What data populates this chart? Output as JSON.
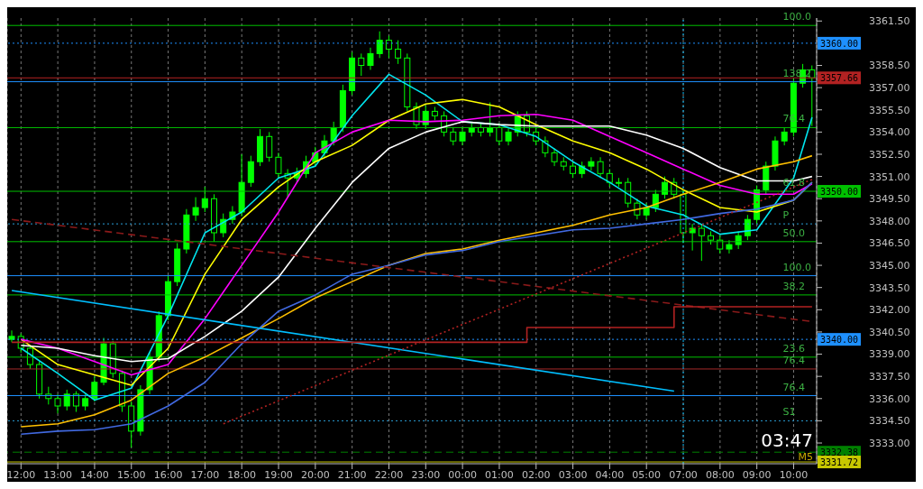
{
  "chart_data": {
    "type": "candlestick",
    "color": "#00ff00",
    "grid": "x",
    "categories": [
      null,
      "12:00",
      null,
      null,
      null,
      "13:00",
      null,
      null,
      null,
      "14:00",
      null,
      null,
      null,
      "15:00",
      null,
      null,
      null,
      "16:00",
      null,
      null,
      null,
      "17:00",
      null,
      null,
      null,
      "18:00",
      null,
      null,
      null,
      "19:00",
      null,
      null,
      null,
      "20:00",
      null,
      null,
      null,
      "21:00",
      null,
      null,
      null,
      "22:00",
      null,
      null,
      null,
      "23:00",
      null,
      null,
      null,
      "00:00",
      null,
      null,
      null,
      "01:00",
      null,
      null,
      null,
      "02:00",
      null,
      null,
      null,
      "03:00",
      null,
      null,
      null,
      "04:00",
      null,
      null,
      null,
      "05:00",
      null,
      null,
      null,
      "07:00",
      null,
      null,
      null,
      "08:00",
      null,
      null,
      null,
      "09:00",
      null,
      null,
      null,
      "10:00",
      null,
      null
    ],
    "ohlc": [
      [
        3340.0,
        3340.6,
        3339.8,
        3340.2
      ],
      [
        3340.2,
        3340.4,
        3339.1,
        3339.4
      ],
      [
        3339.4,
        3339.6,
        3338.0,
        3338.3
      ],
      [
        3338.3,
        3338.5,
        3336.0,
        3336.3
      ],
      [
        3336.3,
        3336.8,
        3335.6,
        3336.0
      ],
      [
        3336.0,
        3336.3,
        3335.0,
        3335.5
      ],
      [
        3335.5,
        3336.6,
        3335.2,
        3336.3
      ],
      [
        3336.3,
        3336.5,
        3335.1,
        3335.5
      ],
      [
        3335.5,
        3336.3,
        3335.2,
        3336.0
      ],
      [
        3336.0,
        3337.5,
        3335.8,
        3337.1
      ],
      [
        3337.1,
        3340.1,
        3336.9,
        3339.7
      ],
      [
        3339.7,
        3339.9,
        3337.4,
        3337.7
      ],
      [
        3337.7,
        3337.9,
        3335.1,
        3335.5
      ],
      [
        3335.5,
        3335.8,
        3332.7,
        3333.8
      ],
      [
        3333.8,
        3336.9,
        3333.5,
        3336.6
      ],
      [
        3336.6,
        3339.1,
        3336.3,
        3338.8
      ],
      [
        3338.8,
        3341.9,
        3338.5,
        3341.6
      ],
      [
        3341.6,
        3344.3,
        3341.3,
        3343.9
      ],
      [
        3343.9,
        3346.5,
        3343.6,
        3346.1
      ],
      [
        3346.1,
        3348.8,
        3345.8,
        3348.4
      ],
      [
        3348.4,
        3349.6,
        3348.0,
        3348.9
      ],
      [
        3348.9,
        3350.3,
        3348.6,
        3349.5
      ],
      [
        3349.5,
        3349.8,
        3346.6,
        3347.2
      ],
      [
        3347.2,
        3348.5,
        3346.9,
        3348.1
      ],
      [
        3348.1,
        3349.0,
        3347.8,
        3348.6
      ],
      [
        3348.6,
        3352.5,
        3348.3,
        3350.6
      ],
      [
        3350.6,
        3352.4,
        3350.3,
        3352.0
      ],
      [
        3352.0,
        3354.2,
        3351.7,
        3353.7
      ],
      [
        3353.7,
        3354.0,
        3352.0,
        3352.3
      ],
      [
        3352.3,
        3352.6,
        3350.9,
        3351.2
      ],
      [
        3351.2,
        3351.5,
        3349.6,
        3350.9
      ],
      [
        3350.9,
        3351.6,
        3350.6,
        3351.2
      ],
      [
        3351.2,
        3352.4,
        3350.9,
        3352.0
      ],
      [
        3352.0,
        3353.0,
        3351.7,
        3352.6
      ],
      [
        3352.6,
        3353.8,
        3352.3,
        3353.4
      ],
      [
        3353.4,
        3354.7,
        3353.1,
        3354.3
      ],
      [
        3354.3,
        3357.2,
        3354.0,
        3356.8
      ],
      [
        3356.8,
        3359.4,
        3356.5,
        3359.0
      ],
      [
        3359.0,
        3359.3,
        3357.8,
        3358.5
      ],
      [
        3358.5,
        3359.7,
        3358.2,
        3359.3
      ],
      [
        3359.3,
        3360.8,
        3359.0,
        3360.2
      ],
      [
        3360.2,
        3360.5,
        3359.0,
        3359.6
      ],
      [
        3359.6,
        3360.2,
        3358.6,
        3359.0
      ],
      [
        3359.0,
        3359.3,
        3355.4,
        3355.7
      ],
      [
        3355.7,
        3356.0,
        3354.2,
        3354.5
      ],
      [
        3354.5,
        3355.8,
        3354.2,
        3355.4
      ],
      [
        3355.4,
        3355.7,
        3354.8,
        3355.1
      ],
      [
        3355.1,
        3355.4,
        3353.7,
        3354.0
      ],
      [
        3354.0,
        3354.3,
        3353.1,
        3353.4
      ],
      [
        3353.4,
        3354.3,
        3353.1,
        3354.0
      ],
      [
        3354.0,
        3354.6,
        3353.7,
        3354.3
      ],
      [
        3354.3,
        3354.6,
        3353.7,
        3354.0
      ],
      [
        3354.0,
        3356.0,
        3353.7,
        3354.3
      ],
      [
        3354.3,
        3354.6,
        3353.1,
        3353.4
      ],
      [
        3353.4,
        3354.3,
        3353.1,
        3354.0
      ],
      [
        3354.0,
        3355.4,
        3353.7,
        3355.1
      ],
      [
        3355.1,
        3355.4,
        3353.7,
        3354.0
      ],
      [
        3354.0,
        3354.3,
        3353.1,
        3353.4
      ],
      [
        3353.4,
        3353.7,
        3352.3,
        3352.6
      ],
      [
        3352.6,
        3352.9,
        3351.7,
        3352.0
      ],
      [
        3352.0,
        3352.3,
        3351.4,
        3351.7
      ],
      [
        3351.7,
        3352.0,
        3350.9,
        3351.2
      ],
      [
        3351.2,
        3352.0,
        3350.9,
        3351.7
      ],
      [
        3351.7,
        3352.3,
        3351.4,
        3352.0
      ],
      [
        3352.0,
        3352.3,
        3350.9,
        3351.2
      ],
      [
        3351.2,
        3351.5,
        3350.3,
        3350.6
      ],
      [
        3350.6,
        3350.9,
        3350.3,
        3350.6
      ],
      [
        3350.6,
        3350.9,
        3348.9,
        3349.2
      ],
      [
        3349.2,
        3349.5,
        3348.1,
        3348.4
      ],
      [
        3348.4,
        3349.2,
        3348.1,
        3348.9
      ],
      [
        3348.9,
        3350.1,
        3348.6,
        3349.8
      ],
      [
        3349.8,
        3351.0,
        3349.5,
        3350.6
      ],
      [
        3350.6,
        3350.9,
        3349.5,
        3349.8
      ],
      [
        3349.8,
        3350.1,
        3346.5,
        3347.2
      ],
      [
        3347.2,
        3347.8,
        3346.0,
        3347.5
      ],
      [
        3347.5,
        3347.8,
        3345.3,
        3347.0
      ],
      [
        3347.0,
        3347.3,
        3346.4,
        3346.7
      ],
      [
        3346.7,
        3347.0,
        3345.8,
        3346.1
      ],
      [
        3346.1,
        3346.7,
        3345.8,
        3346.4
      ],
      [
        3346.4,
        3347.3,
        3346.1,
        3347.0
      ],
      [
        3347.0,
        3348.4,
        3346.7,
        3348.1
      ],
      [
        3348.1,
        3350.4,
        3347.8,
        3350.1
      ],
      [
        3350.1,
        3352.0,
        3349.8,
        3351.7
      ],
      [
        3351.7,
        3353.7,
        3351.4,
        3353.4
      ],
      [
        3353.4,
        3354.3,
        3353.1,
        3354.0
      ],
      [
        3354.0,
        3357.6,
        3353.7,
        3357.3
      ],
      [
        3357.3,
        3358.6,
        3357.0,
        3358.2
      ],
      [
        3358.2,
        3358.5,
        3354.4,
        3357.66
      ]
    ],
    "series": [
      {
        "type": "line",
        "color": "#00e5ee",
        "values": [
          null,
          3339.4,
          null,
          null,
          null,
          3337.7,
          null,
          null,
          null,
          3335.9,
          null,
          null,
          null,
          3336.7,
          null,
          null,
          null,
          3341.6,
          null,
          null,
          null,
          3347.2,
          null,
          null,
          null,
          3348.6,
          null,
          null,
          null,
          3350.9,
          null,
          null,
          null,
          3351.7,
          null,
          null,
          null,
          3355.1,
          null,
          null,
          null,
          3357.9,
          null,
          null,
          null,
          3356.5,
          null,
          null,
          null,
          3354.7,
          null,
          null,
          null,
          3354.5,
          null,
          null,
          null,
          3353.7,
          null,
          null,
          null,
          3352.0,
          null,
          null,
          null,
          3350.6,
          null,
          null,
          null,
          3349.0,
          null,
          null,
          null,
          3348.4,
          null,
          null,
          null,
          3347.1,
          null,
          null,
          null,
          3347.4,
          null,
          null,
          null,
          3350.9,
          null,
          3355.0
        ]
      },
      {
        "type": "line",
        "color": "#ffff00",
        "values": [
          null,
          3340.0,
          null,
          null,
          null,
          3338.3,
          null,
          null,
          null,
          3337.6,
          null,
          null,
          null,
          3336.9,
          null,
          null,
          null,
          3339.4,
          null,
          null,
          null,
          3344.4,
          null,
          null,
          null,
          3348.1,
          null,
          null,
          null,
          3350.3,
          null,
          null,
          null,
          3352.0,
          null,
          null,
          null,
          3353.1,
          null,
          null,
          null,
          3354.8,
          null,
          null,
          null,
          3355.9,
          null,
          null,
          null,
          3356.2,
          null,
          null,
          null,
          3355.7,
          null,
          null,
          null,
          3354.5,
          null,
          null,
          null,
          3353.4,
          null,
          null,
          null,
          3352.6,
          null,
          null,
          null,
          3351.5,
          null,
          null,
          null,
          3350.1,
          null,
          null,
          null,
          3348.9,
          null,
          null,
          null,
          3348.6,
          null,
          null,
          null,
          3349.4,
          null,
          3350.6
        ]
      },
      {
        "type": "line",
        "color": "#ff00ff",
        "values": [
          null,
          3340.0,
          null,
          null,
          null,
          3339.4,
          null,
          null,
          null,
          3338.5,
          null,
          null,
          null,
          3337.6,
          null,
          null,
          null,
          3338.3,
          null,
          null,
          null,
          3341.4,
          null,
          null,
          null,
          3345.0,
          null,
          null,
          null,
          3348.6,
          null,
          null,
          null,
          3352.6,
          null,
          null,
          null,
          3354.0,
          null,
          null,
          null,
          3354.8,
          null,
          null,
          null,
          3354.7,
          null,
          null,
          null,
          3354.8,
          null,
          null,
          null,
          3355.1,
          null,
          null,
          null,
          3355.2,
          null,
          null,
          null,
          3354.8,
          null,
          null,
          null,
          3353.7,
          null,
          null,
          null,
          3352.6,
          null,
          null,
          null,
          3351.5,
          null,
          null,
          null,
          3350.4,
          null,
          null,
          null,
          3349.8,
          null,
          null,
          null,
          3349.8,
          null,
          3350.5
        ]
      },
      {
        "type": "line",
        "color": "#ffffff",
        "values": [
          null,
          3339.6,
          null,
          null,
          null,
          3339.4,
          null,
          null,
          null,
          3338.9,
          null,
          null,
          null,
          3338.5,
          null,
          null,
          null,
          3338.7,
          null,
          null,
          null,
          3340.2,
          null,
          null,
          null,
          3341.9,
          null,
          null,
          null,
          3344.2,
          null,
          null,
          null,
          3347.5,
          null,
          null,
          null,
          3350.6,
          null,
          null,
          null,
          3352.9,
          null,
          null,
          null,
          3354.0,
          null,
          null,
          null,
          3354.7,
          null,
          null,
          null,
          3354.5,
          null,
          null,
          null,
          3354.4,
          null,
          null,
          null,
          3354.4,
          null,
          null,
          null,
          3354.4,
          null,
          null,
          null,
          3353.8,
          null,
          null,
          null,
          3352.9,
          null,
          null,
          null,
          3351.6,
          null,
          null,
          null,
          3350.7,
          null,
          null,
          null,
          3350.7,
          null,
          3351.0
        ]
      },
      {
        "type": "line",
        "color": "#ffc000",
        "values": [
          null,
          3334.1,
          null,
          null,
          null,
          3334.3,
          null,
          null,
          null,
          3334.9,
          null,
          null,
          null,
          3335.9,
          null,
          null,
          null,
          3337.7,
          null,
          null,
          null,
          3338.8,
          null,
          null,
          null,
          3340.1,
          null,
          null,
          null,
          3341.4,
          null,
          null,
          null,
          3342.8,
          null,
          null,
          null,
          3343.9,
          null,
          null,
          null,
          3345.0,
          null,
          null,
          null,
          3345.8,
          null,
          null,
          null,
          3346.1,
          null,
          null,
          null,
          3346.7,
          null,
          null,
          null,
          3347.2,
          null,
          null,
          null,
          3347.7,
          null,
          null,
          null,
          3348.4,
          null,
          null,
          null,
          3348.9,
          null,
          null,
          null,
          3349.8,
          null,
          null,
          null,
          3350.6,
          null,
          null,
          null,
          3351.5,
          null,
          null,
          null,
          3352.0,
          null,
          3352.4
        ]
      },
      {
        "type": "line",
        "color": "#4169e1",
        "values": [
          null,
          3333.6,
          null,
          null,
          null,
          3333.8,
          null,
          null,
          null,
          3333.9,
          null,
          null,
          null,
          3334.3,
          null,
          null,
          null,
          3335.5,
          null,
          null,
          null,
          3337.1,
          null,
          null,
          null,
          3339.7,
          null,
          null,
          null,
          3341.9,
          null,
          null,
          null,
          3343.0,
          null,
          null,
          null,
          3344.4,
          null,
          null,
          null,
          3345.0,
          null,
          null,
          null,
          3345.7,
          null,
          null,
          null,
          3346.0,
          null,
          null,
          null,
          3346.6,
          null,
          null,
          null,
          3347.0,
          null,
          null,
          null,
          3347.4,
          null,
          null,
          null,
          3347.5,
          null,
          null,
          null,
          3347.8,
          null,
          null,
          null,
          3348.1,
          null,
          null,
          null,
          3348.5,
          null,
          null,
          null,
          3348.8,
          null,
          null,
          null,
          3349.4,
          null,
          3350.6
        ]
      },
      {
        "type": "line",
        "color": "#00bfff",
        "values": [
          3343.3,
          null,
          null,
          null,
          null,
          null,
          null,
          null,
          null,
          null,
          null,
          null,
          null,
          null,
          null,
          null,
          null,
          null,
          null,
          null,
          null,
          null,
          null,
          null,
          null,
          null,
          null,
          null,
          null,
          null,
          null,
          null,
          null,
          null,
          null,
          null,
          null,
          null,
          null,
          null,
          null,
          null,
          null,
          null,
          null,
          null,
          null,
          null,
          null,
          null,
          null,
          null,
          null,
          null,
          null,
          null,
          null,
          null,
          null,
          null,
          null,
          null,
          null,
          null,
          null,
          null,
          null,
          null,
          null,
          null,
          null,
          null,
          3336.5,
          null,
          null,
          null,
          null,
          null,
          null,
          null,
          null,
          null,
          null,
          null,
          null,
          null,
          null,
          null
        ]
      },
      {
        "type": "line",
        "color": "#8b1a1a",
        "line_style": "dashed",
        "values": [
          3348.1,
          null,
          null,
          null,
          null,
          null,
          null,
          null,
          null,
          null,
          null,
          null,
          null,
          null,
          null,
          null,
          null,
          null,
          null,
          null,
          null,
          null,
          null,
          null,
          null,
          null,
          null,
          null,
          null,
          null,
          null,
          null,
          null,
          null,
          null,
          null,
          null,
          null,
          null,
          null,
          null,
          null,
          null,
          null,
          null,
          null,
          null,
          null,
          null,
          null,
          null,
          null,
          null,
          null,
          null,
          null,
          null,
          null,
          null,
          null,
          null,
          null,
          null,
          null,
          null,
          null,
          null,
          null,
          null,
          null,
          null,
          null,
          null,
          null,
          null,
          null,
          null,
          null,
          null,
          null,
          null,
          null,
          null,
          null,
          null,
          null,
          null,
          3341.2
        ]
      },
      {
        "type": "line",
        "color": "#b22222",
        "line_style": "dotted",
        "values": [
          null,
          null,
          null,
          null,
          null,
          null,
          null,
          null,
          null,
          null,
          null,
          null,
          null,
          null,
          null,
          null,
          null,
          null,
          null,
          null,
          null,
          null,
          null,
          3334.3,
          null,
          null,
          null,
          null,
          null,
          null,
          null,
          null,
          null,
          null,
          null,
          null,
          null,
          null,
          null,
          null,
          null,
          null,
          null,
          null,
          null,
          null,
          null,
          null,
          null,
          null,
          null,
          null,
          null,
          null,
          null,
          null,
          null,
          null,
          null,
          null,
          null,
          null,
          null,
          null,
          null,
          null,
          null,
          null,
          null,
          null,
          null,
          null,
          null,
          null,
          null,
          null,
          null,
          null,
          null,
          null,
          null,
          null,
          null,
          null,
          null,
          null,
          null,
          3350.8
        ]
      },
      {
        "type": "step",
        "color": "#b22222",
        "values": [
          3339.8,
          null,
          null,
          null,
          null,
          null,
          null,
          null,
          null,
          null,
          null,
          null,
          null,
          null,
          null,
          null,
          null,
          null,
          null,
          null,
          null,
          null,
          null,
          null,
          null,
          null,
          null,
          null,
          null,
          null,
          null,
          null,
          null,
          null,
          null,
          null,
          null,
          null,
          null,
          null,
          null,
          null,
          null,
          null,
          null,
          null,
          null,
          null,
          null,
          null,
          null,
          null,
          null,
          null,
          null,
          null,
          3340.8,
          null,
          null,
          null,
          null,
          null,
          null,
          null,
          null,
          null,
          null,
          null,
          null,
          null,
          null,
          null,
          3342.2,
          null,
          null,
          null,
          null,
          null,
          null,
          null,
          null,
          null,
          null,
          null,
          null,
          null,
          null,
          3342.2
        ]
      }
    ],
    "ylim": [
      3331.6,
      3361.7
    ],
    "yticks": [
      {
        "value": 3333.0,
        "label": "3333.00"
      },
      {
        "value": 3334.5,
        "label": "3334.50"
      },
      {
        "value": 3336.0,
        "label": "3336.00"
      },
      {
        "value": 3337.5,
        "label": "3337.50"
      },
      {
        "value": 3339.0,
        "label": "3339.00"
      },
      {
        "value": 3340.5,
        "label": "3340.50"
      },
      {
        "value": 3342.0,
        "label": "3342.00"
      },
      {
        "value": 3343.5,
        "label": "3343.50"
      },
      {
        "value": 3345.0,
        "label": "3345.00"
      },
      {
        "value": 3346.5,
        "label": "3346.50"
      },
      {
        "value": 3348.0,
        "label": "3348.00"
      },
      {
        "value": 3349.5,
        "label": "3349.50"
      },
      {
        "value": 3351.0,
        "label": "3351.00"
      },
      {
        "value": 3352.5,
        "label": "3352.50"
      },
      {
        "value": 3354.0,
        "label": "3354.00"
      },
      {
        "value": 3355.5,
        "label": "3355.50"
      },
      {
        "value": 3357.0,
        "label": "3357.00"
      },
      {
        "value": 3358.5,
        "label": "3358.50"
      },
      {
        "value": 3361.5,
        "label": "3361.50"
      }
    ],
    "ref_lines": [
      {
        "axis": "y",
        "value": 3361.2,
        "color": "#00c000"
      },
      {
        "axis": "y",
        "value": 3360,
        "label": "3360.00",
        "color": "#1e90ff",
        "line_style": "dotted"
      },
      {
        "axis": "y",
        "value": 3357.66,
        "label": "3357.66",
        "color": "#b22222"
      },
      {
        "axis": "y",
        "value": 3357.4,
        "color": "#1e90ff"
      },
      {
        "axis": "y",
        "value": 3354.3,
        "color": "#00c000"
      },
      {
        "axis": "y",
        "value": 3350,
        "label": "3350.00",
        "color": "#00c000"
      },
      {
        "axis": "y",
        "value": 3347.8,
        "color": "#2a9fd6",
        "line_style": "dotted"
      },
      {
        "axis": "y",
        "value": 3346.6,
        "color": "#00c000"
      },
      {
        "axis": "y",
        "value": 3344.3,
        "color": "#1e90ff"
      },
      {
        "axis": "y",
        "value": 3343.0,
        "color": "#00c000"
      },
      {
        "axis": "y",
        "value": 3340,
        "label": "3340.00",
        "color": "#1e90ff",
        "line_style": "dotted"
      },
      {
        "axis": "y",
        "value": 3338.8,
        "color": "#00c000"
      },
      {
        "axis": "y",
        "value": 3338.0,
        "color": "#a52a2a"
      },
      {
        "axis": "y",
        "value": 3336.2,
        "color": "#1e90ff"
      },
      {
        "axis": "y",
        "value": 3334.5,
        "color": "#2a9fd6",
        "line_style": "dotted"
      },
      {
        "axis": "y",
        "value": 3332.38,
        "label": "3332.38",
        "color": "#008000",
        "line_style": "dashed"
      },
      {
        "axis": "y",
        "value": 3331.72,
        "label": "3331.72",
        "color": "#c8c800"
      },
      {
        "axis": "x",
        "value": "07:00",
        "color": "#00bfff",
        "line_style": "dotted"
      }
    ],
    "annotations": [
      "03:47",
      "M5",
      {
        "text": "100.0",
        "x": "10:00",
        "y": 3361.2
      },
      {
        "text": "138.2",
        "x": "10:00",
        "y": 3357.4
      },
      {
        "text": "76.4",
        "x": "10:00",
        "y": 3354.3
      },
      {
        "text": "61.8",
        "x": "10:00",
        "y": 3350
      },
      {
        "text": "P",
        "x": "10:00",
        "y": 3347.8
      },
      {
        "text": "50.0",
        "x": "10:00",
        "y": 3346.6
      },
      {
        "text": "100.0",
        "x": "10:00",
        "y": 3344.3
      },
      {
        "text": "38.2",
        "x": "10:00",
        "y": 3343.0
      },
      {
        "text": "23.6",
        "x": "10:00",
        "y": 3338.8
      },
      {
        "text": "76.4",
        "x": "10:00",
        "y": 3338.0
      },
      {
        "text": "76.4",
        "x": "10:00",
        "y": 3336.2
      },
      {
        "text": "S1",
        "x": "10:00",
        "y": 3334.5
      }
    ]
  }
}
